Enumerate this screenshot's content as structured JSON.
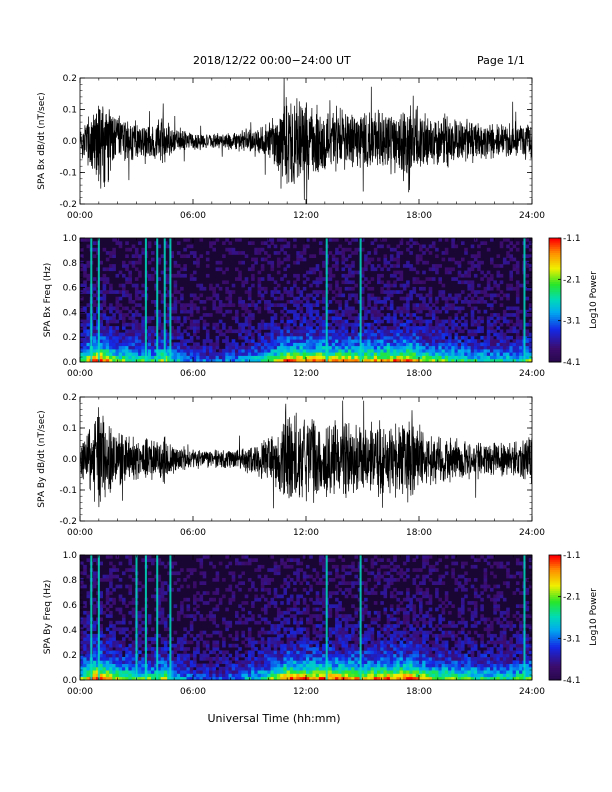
{
  "header": {
    "title": "2018/12/22  00:00−24:00 UT",
    "page": "Page 1/1"
  },
  "footer": {
    "xlabel": "Universal Time (hh:mm)"
  },
  "colors": {
    "trace": "#000000",
    "spectrogram_background": "#1a0633"
  },
  "chart_data": [
    {
      "type": "line",
      "panel": "SPA Bx waveform",
      "ylabel": "SPA Bx dB/dt (nT/sec)",
      "xlim": [
        "00:00",
        "24:00"
      ],
      "ylim": [
        -0.2,
        0.2
      ],
      "x_ticks": [
        "00:00",
        "06:00",
        "12:00",
        "18:00",
        "24:00"
      ],
      "y_ticks": [
        "-0.2",
        "-0.1",
        "0.0",
        "0.1",
        "0.2"
      ],
      "x_hours": [
        0,
        0.5,
        1.0,
        1.5,
        2,
        3,
        4,
        4.5,
        5,
        6,
        7,
        8,
        9,
        10,
        10.5,
        11,
        12,
        13,
        14,
        15,
        16,
        17,
        17.5,
        18,
        19,
        20,
        21,
        22,
        23,
        24
      ],
      "amplitude": [
        0.05,
        0.1,
        0.2,
        0.14,
        0.09,
        0.07,
        0.06,
        0.09,
        0.05,
        0.03,
        0.025,
        0.03,
        0.045,
        0.07,
        0.1,
        0.17,
        0.14,
        0.13,
        0.11,
        0.1,
        0.11,
        0.13,
        0.18,
        0.11,
        0.09,
        0.08,
        0.07,
        0.06,
        0.06,
        0.08
      ]
    },
    {
      "type": "heatmap",
      "panel": "SPA Bx spectrogram",
      "ylabel": "SPA Bx Freq (Hz)",
      "xlim": [
        "00:00",
        "24:00"
      ],
      "ylim": [
        0.0,
        1.0
      ],
      "x_ticks": [
        "00:00",
        "06:00",
        "12:00",
        "18:00",
        "24:00"
      ],
      "y_ticks": [
        "0.0",
        "0.2",
        "0.4",
        "0.6",
        "0.8",
        "1.0"
      ],
      "colorbar": {
        "label": "Log10 Power",
        "ticks": [
          "-1.1",
          "-2.1",
          "-3.1",
          "-4.1"
        ],
        "range": [
          -4.1,
          -1.1
        ]
      },
      "x_hours": [
        0,
        0.5,
        1.0,
        1.5,
        2,
        3,
        4,
        4.5,
        5,
        6,
        7,
        8,
        9,
        10,
        10.5,
        11,
        12,
        13,
        14,
        15,
        16,
        17,
        17.5,
        18,
        19,
        20,
        21,
        22,
        23,
        24
      ],
      "activity": [
        0.5,
        0.8,
        1.0,
        0.75,
        0.6,
        0.55,
        0.5,
        0.7,
        0.45,
        0.3,
        0.25,
        0.3,
        0.4,
        0.55,
        0.7,
        0.85,
        0.8,
        0.85,
        0.8,
        0.75,
        0.8,
        0.85,
        0.9,
        0.7,
        0.6,
        0.55,
        0.5,
        0.45,
        0.45,
        0.6
      ],
      "lines_hours": [
        0.6,
        1.0,
        3.5,
        4.1,
        4.5,
        4.8,
        13.1,
        14.9,
        23.6
      ]
    },
    {
      "type": "line",
      "panel": "SPA By waveform",
      "ylabel": "SPA By dB/dt (nT/sec)",
      "xlim": [
        "00:00",
        "24:00"
      ],
      "ylim": [
        -0.2,
        0.2
      ],
      "x_ticks": [
        "00:00",
        "06:00",
        "12:00",
        "18:00",
        "24:00"
      ],
      "y_ticks": [
        "-0.2",
        "-0.1",
        "0.0",
        "0.1",
        "0.2"
      ],
      "x_hours": [
        0,
        0.5,
        1.0,
        1.5,
        2,
        3,
        4,
        4.5,
        5,
        6,
        7,
        8,
        9,
        10,
        10.5,
        11,
        12,
        13,
        14,
        15,
        16,
        17,
        17.5,
        18,
        19,
        20,
        21,
        22,
        23,
        24
      ],
      "amplitude": [
        0.06,
        0.12,
        0.2,
        0.13,
        0.1,
        0.08,
        0.07,
        0.09,
        0.05,
        0.035,
        0.03,
        0.035,
        0.05,
        0.08,
        0.12,
        0.2,
        0.15,
        0.14,
        0.13,
        0.12,
        0.14,
        0.13,
        0.17,
        0.11,
        0.09,
        0.08,
        0.07,
        0.06,
        0.06,
        0.1
      ]
    },
    {
      "type": "heatmap",
      "panel": "SPA By spectrogram",
      "ylabel": "SPA By Freq (Hz)",
      "xlim": [
        "00:00",
        "24:00"
      ],
      "ylim": [
        0.0,
        1.0
      ],
      "x_ticks": [
        "00:00",
        "06:00",
        "12:00",
        "18:00",
        "24:00"
      ],
      "y_ticks": [
        "0.0",
        "0.2",
        "0.4",
        "0.6",
        "0.8",
        "1.0"
      ],
      "colorbar": {
        "label": "Log10 Power",
        "ticks": [
          "-1.1",
          "-2.1",
          "-3.1",
          "-4.1"
        ],
        "range": [
          -4.1,
          -1.1
        ]
      },
      "x_hours": [
        0,
        0.5,
        1.0,
        1.5,
        2,
        3,
        4,
        4.5,
        5,
        6,
        7,
        8,
        9,
        10,
        10.5,
        11,
        12,
        13,
        14,
        15,
        16,
        17,
        17.5,
        18,
        19,
        20,
        21,
        22,
        23,
        24
      ],
      "activity": [
        0.55,
        0.85,
        1.0,
        0.8,
        0.65,
        0.6,
        0.55,
        0.7,
        0.45,
        0.3,
        0.25,
        0.3,
        0.4,
        0.55,
        0.7,
        0.9,
        0.85,
        0.85,
        0.85,
        0.8,
        0.85,
        0.85,
        0.9,
        0.75,
        0.65,
        0.6,
        0.55,
        0.5,
        0.5,
        0.65
      ],
      "lines_hours": [
        0.6,
        1.0,
        3.0,
        3.5,
        4.1,
        4.8,
        13.1,
        14.9,
        23.6
      ]
    }
  ]
}
